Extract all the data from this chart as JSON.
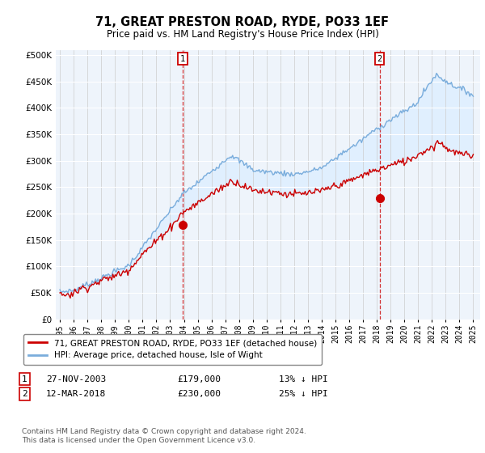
{
  "title": "71, GREAT PRESTON ROAD, RYDE, PO33 1EF",
  "subtitle": "Price paid vs. HM Land Registry's House Price Index (HPI)",
  "ylabel_ticks": [
    "£0",
    "£50K",
    "£100K",
    "£150K",
    "£200K",
    "£250K",
    "£300K",
    "£350K",
    "£400K",
    "£450K",
    "£500K"
  ],
  "ytick_values": [
    0,
    50000,
    100000,
    150000,
    200000,
    250000,
    300000,
    350000,
    400000,
    450000,
    500000
  ],
  "ylim": [
    0,
    510000
  ],
  "xlim_left": 1994.7,
  "xlim_right": 2025.5,
  "sale1_x": 2003.9,
  "sale1_y": 179000,
  "sale2_x": 2018.2,
  "sale2_y": 230000,
  "hpi_color": "#7aaddc",
  "price_color": "#cc0000",
  "shade_color": "#ddeeff",
  "bg_color": "#eef4fb",
  "legend_label1": "71, GREAT PRESTON ROAD, RYDE, PO33 1EF (detached house)",
  "legend_label2": "HPI: Average price, detached house, Isle of Wight",
  "info1_date": "27-NOV-2003",
  "info1_price": "£179,000",
  "info1_hpi": "13% ↓ HPI",
  "info2_date": "12-MAR-2018",
  "info2_price": "£230,000",
  "info2_hpi": "25% ↓ HPI",
  "footer": "Contains HM Land Registry data © Crown copyright and database right 2024.\nThis data is licensed under the Open Government Licence v3.0."
}
